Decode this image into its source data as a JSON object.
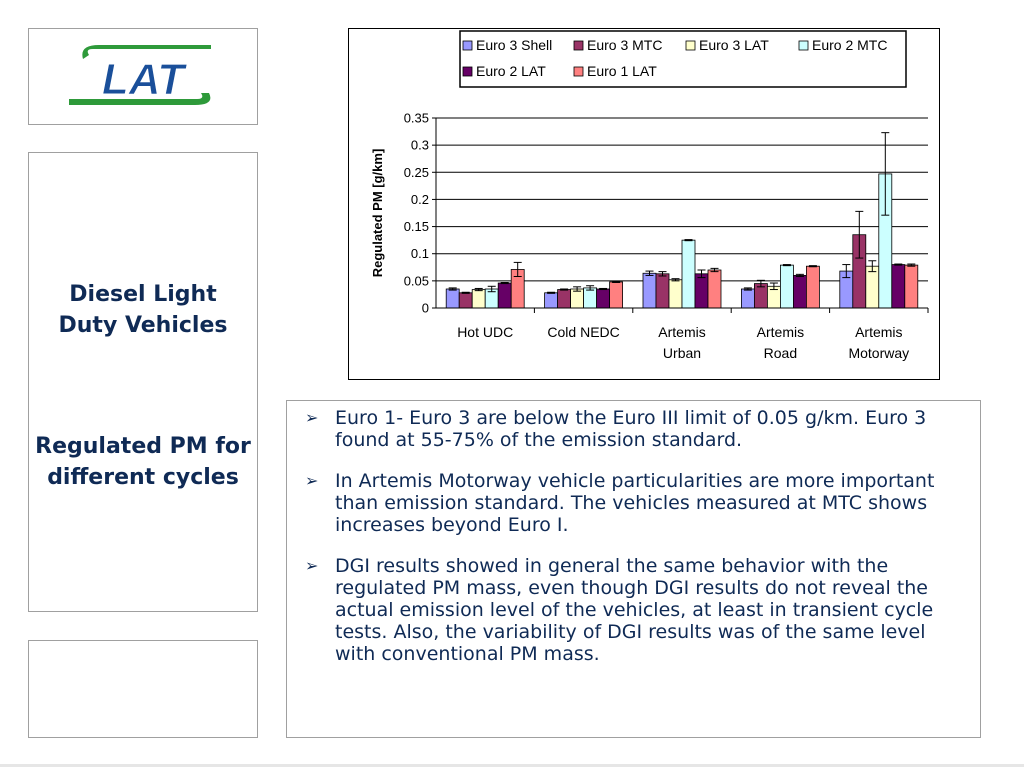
{
  "logo": {
    "text": "LAT"
  },
  "side_panel": {
    "title_line1": "Diesel Light",
    "title_line2": "Duty Vehicles",
    "subtitle_line1": "Regulated PM for",
    "subtitle_line2": "different cycles"
  },
  "bullets": [
    "Euro 1- Euro 3 are below the Euro III limit of 0.05 g/km. Euro 3 found at 55-75% of the emission standard.",
    "In Artemis Motorway vehicle particularities are more important than emission standard. The vehicles measured at MTC shows increases beyond Euro I.",
    "DGI results showed in general the same behavior with the regulated PM mass, even though DGI results do not reveal the actual emission level of the vehicles, at least in transient cycle tests. Also, the variability of DGI results was of the same level with conventional PM mass."
  ],
  "chart_data": {
    "type": "bar",
    "ylabel": "Regulated PM [g/km]",
    "ylim": [
      0,
      0.35
    ],
    "yticks": [
      "0",
      "0.05",
      "0.1",
      "0.15",
      "0.2",
      "0.25",
      "0.3",
      "0.35"
    ],
    "grid": true,
    "legend_position": "top",
    "categories": [
      [
        "Hot UDC"
      ],
      [
        "Cold NEDC"
      ],
      [
        "Artemis",
        "Urban"
      ],
      [
        "Artemis",
        "Road"
      ],
      [
        "Artemis",
        "Motorway"
      ]
    ],
    "series": [
      {
        "name": "Euro 3 Shell",
        "color": "#9999ff",
        "values": [
          0.035,
          0.028,
          0.064,
          0.035,
          0.068
        ],
        "errors": [
          0.002,
          0.001,
          0.004,
          0.002,
          0.012
        ]
      },
      {
        "name": "Euro 3 MTC",
        "color": "#993366",
        "values": [
          0.028,
          0.034,
          0.063,
          0.045,
          0.135
        ],
        "errors": [
          0.001,
          0.001,
          0.004,
          0.006,
          0.043
        ]
      },
      {
        "name": "Euro 3 LAT",
        "color": "#ffffcc",
        "values": [
          0.034,
          0.035,
          0.052,
          0.04,
          0.077
        ],
        "errors": [
          0.002,
          0.004,
          0.002,
          0.006,
          0.01
        ]
      },
      {
        "name": "Euro 2 MTC",
        "color": "#ccffff",
        "values": [
          0.035,
          0.037,
          0.125,
          0.079,
          0.247
        ],
        "errors": [
          0.005,
          0.004,
          0.001,
          0.001,
          0.076
        ]
      },
      {
        "name": "Euro 2 LAT",
        "color": "#660066",
        "values": [
          0.046,
          0.035,
          0.063,
          0.06,
          0.08
        ],
        "errors": [
          0.001,
          0.001,
          0.007,
          0.002,
          0.001
        ]
      },
      {
        "name": "Euro 1 LAT",
        "color": "#ff8080",
        "values": [
          0.071,
          0.048,
          0.07,
          0.077,
          0.079
        ],
        "errors": [
          0.013,
          0.001,
          0.003,
          0.001,
          0.002
        ]
      }
    ]
  }
}
